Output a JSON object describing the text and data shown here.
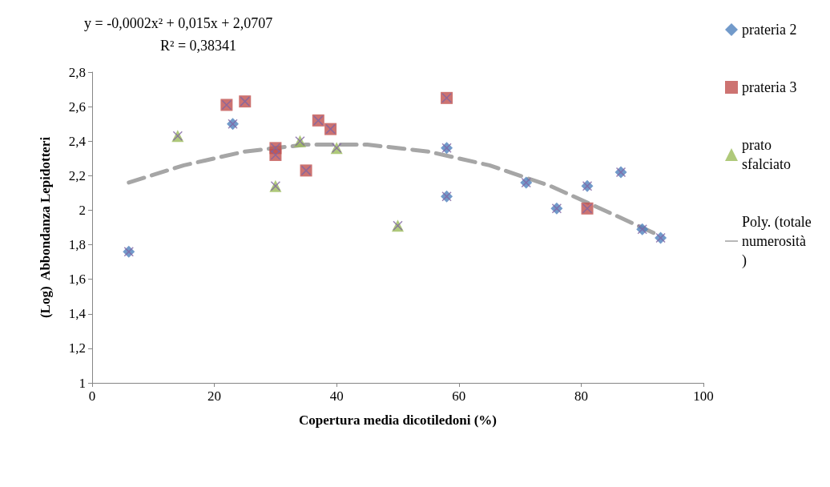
{
  "chart_data": {
    "type": "scatter",
    "xlabel": "Copertura media dicotiledoni (%)",
    "ylabel": "(Log)  Abbondanza Lepidotteri",
    "xlim": [
      0,
      100
    ],
    "xticks": [
      0,
      20,
      40,
      60,
      80,
      100
    ],
    "ylim": [
      1,
      2.8
    ],
    "yticks": [
      {
        "value": 1,
        "label": "1"
      },
      {
        "value": 1.2,
        "label": "1,2"
      },
      {
        "value": 1.4,
        "label": "1,4"
      },
      {
        "value": 1.6,
        "label": "1,6"
      },
      {
        "value": 1.8,
        "label": "1,8"
      },
      {
        "value": 2,
        "label": "2"
      },
      {
        "value": 2.2,
        "label": "2,2"
      },
      {
        "value": 2.4,
        "label": "2,4"
      },
      {
        "value": 2.6,
        "label": "2,6"
      },
      {
        "value": 2.8,
        "label": "2,8"
      }
    ],
    "grid": false,
    "legend": "right",
    "annotations": [
      "y = -0,0002x² + 0,015x + 2,0707",
      "R² = 0,38341"
    ],
    "series": [
      {
        "name": "prateria 2",
        "color": "#4f81bd",
        "marker": "diamond",
        "x": [
          6,
          23,
          58,
          58,
          71,
          76,
          81,
          86.5,
          90,
          93
        ],
        "values": [
          1.76,
          2.5,
          2.36,
          2.08,
          2.16,
          2.01,
          2.14,
          2.22,
          1.89,
          1.84
        ]
      },
      {
        "name": "prateria 3",
        "color": "#c0504d",
        "marker": "square",
        "x": [
          22,
          25,
          30,
          30,
          35,
          37,
          39,
          58,
          81
        ],
        "values": [
          2.61,
          2.63,
          2.36,
          2.32,
          2.23,
          2.52,
          2.47,
          2.65,
          2.01
        ]
      },
      {
        "name": "prato sfalciato",
        "color": "#9bbb59",
        "marker": "triangle",
        "x": [
          14,
          30,
          34,
          40,
          50
        ],
        "values": [
          2.43,
          2.14,
          2.4,
          2.36,
          1.91
        ]
      },
      {
        "color": "#8064a2",
        "marker": "cross",
        "x": [
          6,
          23,
          58,
          58,
          71,
          76,
          81,
          86.5,
          90,
          93,
          22,
          25,
          30,
          30,
          35,
          37,
          39,
          58,
          81,
          14,
          30,
          34,
          40,
          50
        ],
        "values": [
          1.76,
          2.5,
          2.36,
          2.08,
          2.16,
          2.01,
          2.14,
          2.22,
          1.89,
          1.84,
          2.61,
          2.63,
          2.36,
          2.32,
          2.23,
          2.52,
          2.47,
          2.65,
          2.01,
          2.43,
          2.14,
          2.4,
          2.36,
          1.91
        ]
      },
      {
        "name": "Poly. (totale numerosità)",
        "type": "line",
        "color": "#a6a6a6",
        "line_style": "dashed",
        "marker": "none",
        "x": [
          6,
          15,
          25,
          35,
          45,
          55,
          65,
          75,
          85,
          93
        ],
        "values": [
          2.16,
          2.26,
          2.34,
          2.38,
          2.38,
          2.34,
          2.26,
          2.14,
          1.98,
          1.85
        ]
      }
    ]
  }
}
